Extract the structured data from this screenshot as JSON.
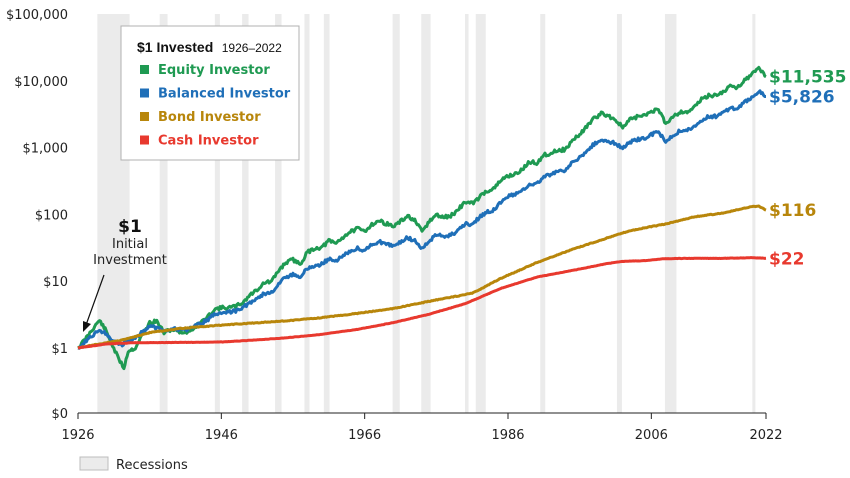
{
  "chart_data": {
    "type": "line",
    "title": "$1 Invested",
    "subtitle": "1926–2022",
    "y_scale": "log",
    "xlim": [
      1926,
      2022
    ],
    "y_ticks": [
      {
        "value": 0,
        "label": "$0"
      },
      {
        "value": 1,
        "label": "$1"
      },
      {
        "value": 10,
        "label": "$10"
      },
      {
        "value": 100,
        "label": "$100"
      },
      {
        "value": 1000,
        "label": "$1,000"
      },
      {
        "value": 10000,
        "label": "$10,000"
      },
      {
        "value": 100000,
        "label": "$100,000"
      }
    ],
    "x_ticks": [
      1926,
      1946,
      1966,
      1986,
      2006,
      2022
    ],
    "legend_placement": "top-left",
    "recessions_label": "Recessions",
    "recessions": [
      [
        1928.7,
        1933.2
      ],
      [
        1937.4,
        1938.5
      ],
      [
        1945.1,
        1945.8
      ],
      [
        1948.9,
        1949.8
      ],
      [
        1953.5,
        1954.4
      ],
      [
        1957.6,
        1958.3
      ],
      [
        1960.3,
        1961.1
      ],
      [
        1969.9,
        1970.9
      ],
      [
        1973.9,
        1975.2
      ],
      [
        1980.0,
        1980.5
      ],
      [
        1981.5,
        1982.9
      ],
      [
        1990.5,
        1991.2
      ],
      [
        2001.2,
        2001.9
      ],
      [
        2007.9,
        2009.5
      ],
      [
        2020.1,
        2020.4
      ]
    ],
    "annotation": {
      "value": "$1",
      "text_line1": "Initial",
      "text_line2": "Investment"
    },
    "series": [
      {
        "name": "Equity Investor",
        "color": "#1f9a52",
        "end_label": "$11,535",
        "points": [
          [
            1926,
            1
          ],
          [
            1927,
            1.35
          ],
          [
            1928,
            1.9
          ],
          [
            1929,
            2.6
          ],
          [
            1929.8,
            1.9
          ],
          [
            1930.5,
            1.3
          ],
          [
            1931.5,
            0.75
          ],
          [
            1932.4,
            0.5
          ],
          [
            1933,
            0.9
          ],
          [
            1934,
            1.0
          ],
          [
            1935,
            1.6
          ],
          [
            1936,
            2.4
          ],
          [
            1937,
            2.5
          ],
          [
            1938,
            1.7
          ],
          [
            1939,
            1.9
          ],
          [
            1940,
            1.8
          ],
          [
            1941,
            1.7
          ],
          [
            1942,
            1.9
          ],
          [
            1943,
            2.4
          ],
          [
            1944,
            2.8
          ],
          [
            1945,
            3.8
          ],
          [
            1946,
            4.0
          ],
          [
            1947,
            4.0
          ],
          [
            1948,
            4.2
          ],
          [
            1949,
            4.8
          ],
          [
            1950,
            6.2
          ],
          [
            1951,
            7.5
          ],
          [
            1952,
            9.5
          ],
          [
            1953,
            9.8
          ],
          [
            1954,
            14.5
          ],
          [
            1955,
            19
          ],
          [
            1956,
            21
          ],
          [
            1957,
            18
          ],
          [
            1958,
            27
          ],
          [
            1959,
            31
          ],
          [
            1960,
            32
          ],
          [
            1961,
            40
          ],
          [
            1962,
            37
          ],
          [
            1963,
            46
          ],
          [
            1964,
            55
          ],
          [
            1965,
            61
          ],
          [
            1966,
            56
          ],
          [
            1967,
            71
          ],
          [
            1968,
            80
          ],
          [
            1969,
            73
          ],
          [
            1970,
            66
          ],
          [
            1971,
            78
          ],
          [
            1972,
            95
          ],
          [
            1973,
            80
          ],
          [
            1974,
            55
          ],
          [
            1975,
            78
          ],
          [
            1976,
            98
          ],
          [
            1977,
            90
          ],
          [
            1978,
            95
          ],
          [
            1979,
            115
          ],
          [
            1980,
            155
          ],
          [
            1981,
            145
          ],
          [
            1982,
            180
          ],
          [
            1983,
            225
          ],
          [
            1984,
            240
          ],
          [
            1985,
            320
          ],
          [
            1986,
            380
          ],
          [
            1987,
            400
          ],
          [
            1988,
            470
          ],
          [
            1989,
            610
          ],
          [
            1990,
            590
          ],
          [
            1991,
            770
          ],
          [
            1992,
            830
          ],
          [
            1993,
            920
          ],
          [
            1994,
            930
          ],
          [
            1995,
            1280
          ],
          [
            1996,
            1570
          ],
          [
            1997,
            2100
          ],
          [
            1998,
            2700
          ],
          [
            1999,
            3250
          ],
          [
            2000,
            3000
          ],
          [
            2001,
            2600
          ],
          [
            2002,
            2000
          ],
          [
            2003,
            2600
          ],
          [
            2004,
            2900
          ],
          [
            2005,
            3000
          ],
          [
            2006,
            3500
          ],
          [
            2007,
            3700
          ],
          [
            2008,
            2300
          ],
          [
            2009,
            2950
          ],
          [
            2010,
            3400
          ],
          [
            2011,
            3450
          ],
          [
            2012,
            4000
          ],
          [
            2013,
            5300
          ],
          [
            2014,
            6000
          ],
          [
            2015,
            6100
          ],
          [
            2016,
            6800
          ],
          [
            2017,
            8300
          ],
          [
            2018,
            7900
          ],
          [
            2019,
            10400
          ],
          [
            2020,
            12300
          ],
          [
            2021,
            15800
          ],
          [
            2022,
            11535
          ]
        ]
      },
      {
        "name": "Balanced Investor",
        "color": "#1f6fb8",
        "end_label": "$5,826",
        "points": [
          [
            1926,
            1
          ],
          [
            1927,
            1.25
          ],
          [
            1928,
            1.55
          ],
          [
            1929,
            1.85
          ],
          [
            1930,
            1.6
          ],
          [
            1931,
            1.25
          ],
          [
            1932,
            1.1
          ],
          [
            1933,
            1.3
          ],
          [
            1934,
            1.4
          ],
          [
            1935,
            1.75
          ],
          [
            1936,
            2.1
          ],
          [
            1937,
            2.0
          ],
          [
            1938,
            1.85
          ],
          [
            1939,
            1.95
          ],
          [
            1940,
            1.9
          ],
          [
            1941,
            1.85
          ],
          [
            1942,
            2.0
          ],
          [
            1943,
            2.3
          ],
          [
            1944,
            2.6
          ],
          [
            1945,
            3.2
          ],
          [
            1946,
            3.4
          ],
          [
            1947,
            3.4
          ],
          [
            1948,
            3.6
          ],
          [
            1949,
            4.0
          ],
          [
            1950,
            4.8
          ],
          [
            1951,
            5.6
          ],
          [
            1952,
            6.5
          ],
          [
            1953,
            6.8
          ],
          [
            1954,
            9.0
          ],
          [
            1955,
            11.5
          ],
          [
            1956,
            12.5
          ],
          [
            1957,
            11.5
          ],
          [
            1958,
            15.5
          ],
          [
            1959,
            17
          ],
          [
            1960,
            18
          ],
          [
            1961,
            21.5
          ],
          [
            1962,
            20.5
          ],
          [
            1963,
            24
          ],
          [
            1964,
            28
          ],
          [
            1965,
            31
          ],
          [
            1966,
            29
          ],
          [
            1967,
            35
          ],
          [
            1968,
            39
          ],
          [
            1969,
            36
          ],
          [
            1970,
            34
          ],
          [
            1971,
            39
          ],
          [
            1972,
            45
          ],
          [
            1973,
            40
          ],
          [
            1974,
            31
          ],
          [
            1975,
            40
          ],
          [
            1976,
            49
          ],
          [
            1977,
            47
          ],
          [
            1978,
            49
          ],
          [
            1979,
            57
          ],
          [
            1980,
            72
          ],
          [
            1981,
            71
          ],
          [
            1982,
            90
          ],
          [
            1983,
            108
          ],
          [
            1984,
            117
          ],
          [
            1985,
            155
          ],
          [
            1986,
            185
          ],
          [
            1987,
            198
          ],
          [
            1988,
            228
          ],
          [
            1989,
            290
          ],
          [
            1990,
            290
          ],
          [
            1991,
            370
          ],
          [
            1992,
            400
          ],
          [
            1993,
            450
          ],
          [
            1994,
            450
          ],
          [
            1995,
            600
          ],
          [
            1996,
            710
          ],
          [
            1997,
            900
          ],
          [
            1998,
            1120
          ],
          [
            1999,
            1280
          ],
          [
            2000,
            1250
          ],
          [
            2001,
            1150
          ],
          [
            2002,
            980
          ],
          [
            2003,
            1200
          ],
          [
            2004,
            1320
          ],
          [
            2005,
            1380
          ],
          [
            2006,
            1580
          ],
          [
            2007,
            1700
          ],
          [
            2008,
            1250
          ],
          [
            2009,
            1550
          ],
          [
            2010,
            1780
          ],
          [
            2011,
            1850
          ],
          [
            2012,
            2100
          ],
          [
            2013,
            2600
          ],
          [
            2014,
            2900
          ],
          [
            2015,
            2950
          ],
          [
            2016,
            3250
          ],
          [
            2017,
            3900
          ],
          [
            2018,
            3750
          ],
          [
            2019,
            4800
          ],
          [
            2020,
            5600
          ],
          [
            2021,
            7000
          ],
          [
            2022,
            5826
          ]
        ]
      },
      {
        "name": "Bond Investor",
        "color": "#b8860b",
        "end_label": "$116",
        "points": [
          [
            1926,
            1
          ],
          [
            1929,
            1.15
          ],
          [
            1932,
            1.3
          ],
          [
            1936,
            1.7
          ],
          [
            1940,
            1.95
          ],
          [
            1946,
            2.2
          ],
          [
            1950,
            2.35
          ],
          [
            1955,
            2.55
          ],
          [
            1960,
            2.85
          ],
          [
            1965,
            3.3
          ],
          [
            1970,
            3.9
          ],
          [
            1975,
            5.0
          ],
          [
            1979,
            6.0
          ],
          [
            1981,
            6.6
          ],
          [
            1985,
            11
          ],
          [
            1990,
            19
          ],
          [
            1995,
            30
          ],
          [
            2000,
            45
          ],
          [
            2003,
            57
          ],
          [
            2008,
            72
          ],
          [
            2012,
            92
          ],
          [
            2016,
            105
          ],
          [
            2020,
            130
          ],
          [
            2021,
            132
          ],
          [
            2022,
            116
          ]
        ]
      },
      {
        "name": "Cash Investor",
        "color": "#e8392e",
        "end_label": "$22",
        "points": [
          [
            1926,
            1
          ],
          [
            1930,
            1.15
          ],
          [
            1934,
            1.2
          ],
          [
            1940,
            1.21
          ],
          [
            1946,
            1.23
          ],
          [
            1950,
            1.3
          ],
          [
            1955,
            1.42
          ],
          [
            1960,
            1.6
          ],
          [
            1965,
            1.9
          ],
          [
            1970,
            2.4
          ],
          [
            1975,
            3.2
          ],
          [
            1980,
            4.6
          ],
          [
            1985,
            7.8
          ],
          [
            1990,
            11.5
          ],
          [
            1995,
            14.5
          ],
          [
            2000,
            18.5
          ],
          [
            2002,
            19.8
          ],
          [
            2005,
            20.3
          ],
          [
            2008,
            21.8
          ],
          [
            2012,
            22
          ],
          [
            2016,
            22
          ],
          [
            2020,
            22.5
          ],
          [
            2022,
            22
          ]
        ]
      }
    ]
  }
}
